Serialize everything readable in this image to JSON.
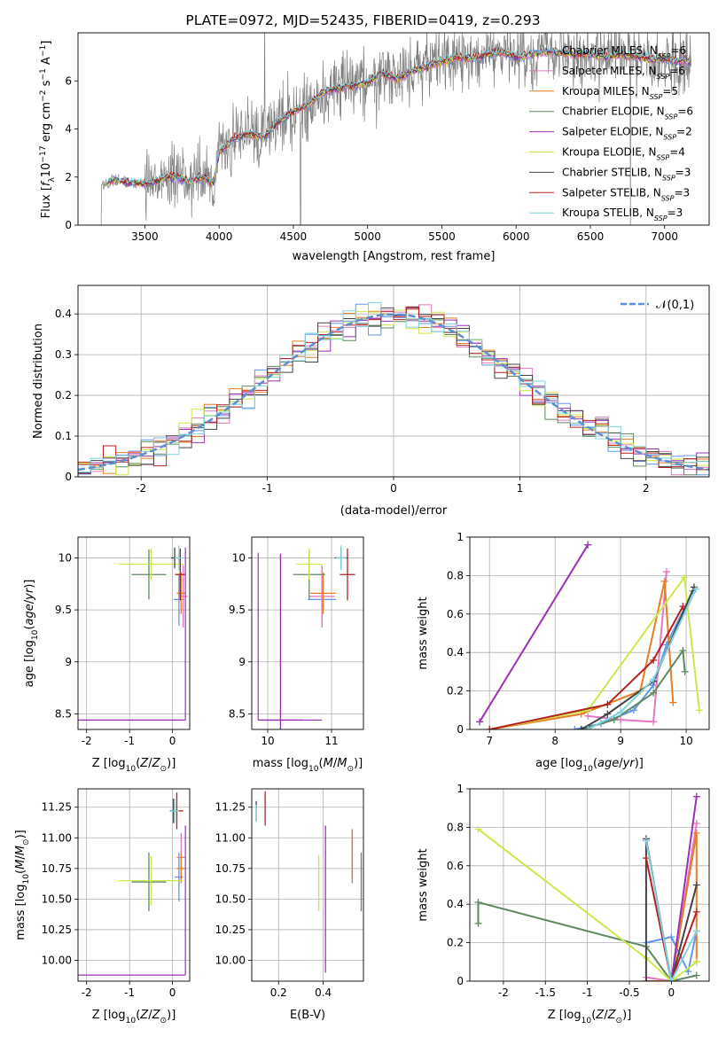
{
  "figure": {
    "title": "PLATE=0972, MJD=52435, FIBERID=0419, z=0.293"
  },
  "chart_data": [
    {
      "id": "spectrum",
      "type": "line",
      "title": "PLATE=0972, MJD=52435, FIBERID=0419, z=0.293",
      "xlabel": "wavelength [Angstrom, rest frame]",
      "ylabel": "Flux [f_λ 10^-17 erg cm^-2 s^-1 A^-1]",
      "xlim": [
        3050,
        7300
      ],
      "ylim": [
        0,
        8
      ],
      "xticks": [
        3500,
        4000,
        4500,
        5000,
        5500,
        6000,
        6500,
        7000
      ],
      "yticks": [
        0,
        2,
        4,
        6
      ],
      "grid": false,
      "legend_position": "top-right",
      "observed_color": "#808080",
      "series": [
        {
          "name": "Chabrier MILES, N_SSP=6",
          "color": "#6495ed"
        },
        {
          "name": "Salpeter MILES, N_SSP=6",
          "color": "#e377c2"
        },
        {
          "name": "Kroupa MILES, N_SSP=5",
          "color": "#e67e22"
        },
        {
          "name": "Chabrier ELODIE, N_SSP=6",
          "color": "#5f8a5f"
        },
        {
          "name": "Salpeter ELODIE, N_SSP=2",
          "color": "#9b30b5"
        },
        {
          "name": "Kroupa ELODIE, N_SSP=4",
          "color": "#cde84a"
        },
        {
          "name": "Chabrier STELIB, N_SSP=3",
          "color": "#444444"
        },
        {
          "name": "Salpeter STELIB, N_SSP=3",
          "color": "#b22222"
        },
        {
          "name": "Kroupa STELIB, N_SSP=3",
          "color": "#7ed3e0"
        }
      ],
      "continuum": [
        [
          3200,
          1.6
        ],
        [
          3300,
          1.9
        ],
        [
          3400,
          1.75
        ],
        [
          3500,
          1.7
        ],
        [
          3600,
          1.9
        ],
        [
          3700,
          2.0
        ],
        [
          3800,
          1.8
        ],
        [
          3900,
          2.0
        ],
        [
          3960,
          1.7
        ],
        [
          4000,
          3.0
        ],
        [
          4100,
          3.6
        ],
        [
          4200,
          3.8
        ],
        [
          4300,
          3.6
        ],
        [
          4400,
          4.3
        ],
        [
          4500,
          4.7
        ],
        [
          4600,
          5.0
        ],
        [
          4700,
          5.5
        ],
        [
          4800,
          5.7
        ],
        [
          4900,
          5.8
        ],
        [
          5000,
          5.9
        ],
        [
          5100,
          6.3
        ],
        [
          5200,
          6.1
        ],
        [
          5300,
          6.4
        ],
        [
          5400,
          6.6
        ],
        [
          5500,
          6.8
        ],
        [
          5600,
          7.0
        ],
        [
          5700,
          6.9
        ],
        [
          5800,
          7.1
        ],
        [
          5900,
          7.2
        ],
        [
          6000,
          7.0
        ],
        [
          6100,
          7.1
        ],
        [
          6200,
          7.2
        ],
        [
          6300,
          7.2
        ],
        [
          6400,
          7.1
        ],
        [
          6500,
          7.1
        ],
        [
          6600,
          7.0
        ],
        [
          6700,
          7.1
        ],
        [
          6800,
          7.0
        ],
        [
          6900,
          6.9
        ],
        [
          7000,
          6.9
        ],
        [
          7100,
          6.8
        ]
      ]
    },
    {
      "id": "residual-histogram",
      "type": "histogram",
      "xlabel": "(data-model)/error",
      "ylabel": "Normed distribution",
      "xlim": [
        -2.5,
        2.5
      ],
      "ylim": [
        0,
        0.47
      ],
      "xticks": [
        -2,
        -1,
        0,
        1,
        2
      ],
      "yticks": [
        0.0,
        0.1,
        0.2,
        0.3,
        0.4
      ],
      "grid": true,
      "bins": 50,
      "legend_position": "top-right",
      "reference": {
        "name": "𝒩(0,1)",
        "mean": 0,
        "sigma": 1,
        "color": "#5b8fd0"
      }
    },
    {
      "id": "age-vs-metallicity",
      "type": "errorbar",
      "xlabel": "Z [log10(Z/Z⊙)]",
      "ylabel": "age [log10(age/yr)]",
      "xlim": [
        -2.2,
        0.4
      ],
      "ylim": [
        8.35,
        10.2
      ],
      "xticks": [
        -2,
        -1,
        0
      ],
      "yticks": [
        8.5,
        9.0,
        9.5,
        10.0
      ],
      "grid": true,
      "points": [
        {
          "x": 0.15,
          "y": 9.6,
          "xerr": 0.12,
          "yerr": 0.25,
          "color": "#6495ed"
        },
        {
          "x": 0.25,
          "y": 9.63,
          "xerr": 0.1,
          "yerr": 0.3,
          "color": "#e377c2"
        },
        {
          "x": 0.2,
          "y": 9.66,
          "xerr": 0.1,
          "yerr": 0.2,
          "color": "#e67e22"
        },
        {
          "x": -0.55,
          "y": 9.84,
          "xerr": 0.4,
          "yerr": 0.24,
          "color": "#5f8a5f"
        },
        {
          "x": -0.95,
          "y": 8.44,
          "xerr": 1.25,
          "yerr": 0.0,
          "color": "#9b30b5"
        },
        {
          "x": -0.5,
          "y": 9.94,
          "xerr": 0.75,
          "yerr": 0.15,
          "color": "#cde84a"
        },
        {
          "x": 0.05,
          "y": 10.0,
          "xerr": 0.08,
          "yerr": 0.1,
          "color": "#444444"
        },
        {
          "x": 0.18,
          "y": 9.84,
          "xerr": 0.12,
          "yerr": 0.25,
          "color": "#b22222"
        },
        {
          "x": 0.15,
          "y": 10.0,
          "xerr": 0.1,
          "yerr": 0.12,
          "color": "#7ed3e0"
        }
      ]
    },
    {
      "id": "age-vs-mass",
      "type": "errorbar",
      "xlabel": "mass [log10(M/M⊙)]",
      "ylabel": "",
      "xlim": [
        9.75,
        11.5
      ],
      "ylim": [
        8.35,
        10.2
      ],
      "xticks": [
        10,
        11
      ],
      "yticks": [
        8.5,
        9.0,
        9.5,
        10.0
      ],
      "grid": true,
      "points": [
        {
          "x": 10.85,
          "y": 9.6,
          "xerr": 0.22,
          "yerr": 0.25,
          "color": "#6495ed"
        },
        {
          "x": 10.85,
          "y": 9.63,
          "xerr": 0.2,
          "yerr": 0.3,
          "color": "#e377c2"
        },
        {
          "x": 10.87,
          "y": 9.66,
          "xerr": 0.2,
          "yerr": 0.2,
          "color": "#e67e22"
        },
        {
          "x": 10.65,
          "y": 9.84,
          "xerr": 0.25,
          "yerr": 0.24,
          "color": "#5f8a5f"
        },
        {
          "x": 10.2,
          "y": 8.44,
          "xerr": 0.35,
          "yerr": 1.6,
          "color": "#9b30b5"
        },
        {
          "x": 10.65,
          "y": 9.94,
          "xerr": 0.2,
          "yerr": 0.15,
          "color": "#cde84a"
        },
        {
          "x": 11.15,
          "y": 10.0,
          "xerr": 0.1,
          "yerr": 0.1,
          "color": "#444444"
        },
        {
          "x": 11.25,
          "y": 9.84,
          "xerr": 0.12,
          "yerr": 0.25,
          "color": "#b22222"
        },
        {
          "x": 11.15,
          "y": 10.0,
          "xerr": 0.08,
          "yerr": 0.12,
          "color": "#7ed3e0"
        }
      ]
    },
    {
      "id": "mass-weight-vs-age",
      "type": "line",
      "xlabel": "age [log10(age/yr)]",
      "ylabel": "mass weight",
      "xlim": [
        6.7,
        10.35
      ],
      "ylim": [
        0,
        1.0
      ],
      "xticks": [
        7,
        8,
        9,
        10
      ],
      "yticks": [
        0.0,
        0.2,
        0.4,
        0.6,
        0.8,
        1.0
      ],
      "grid": true,
      "series": [
        {
          "color": "#6495ed",
          "points": [
            [
              8.3,
              0.0
            ],
            [
              8.7,
              0.03
            ],
            [
              9.2,
              0.1
            ],
            [
              9.5,
              0.23
            ],
            [
              9.7,
              0.44
            ],
            [
              10.1,
              0.72
            ]
          ]
        },
        {
          "color": "#e377c2",
          "points": [
            [
              8.5,
              0.07
            ],
            [
              9.0,
              0.05
            ],
            [
              9.5,
              0.04
            ],
            [
              9.7,
              0.82
            ]
          ]
        },
        {
          "color": "#e67e22",
          "points": [
            [
              7.0,
              0.0
            ],
            [
              8.4,
              0.08
            ],
            [
              9.3,
              0.2
            ],
            [
              9.67,
              0.77
            ],
            [
              9.8,
              0.14
            ]
          ]
        },
        {
          "color": "#5f8a5f",
          "points": [
            [
              8.4,
              0.0
            ],
            [
              8.9,
              0.05
            ],
            [
              9.5,
              0.19
            ],
            [
              9.95,
              0.41
            ],
            [
              9.98,
              0.3
            ]
          ]
        },
        {
          "color": "#9b30b5",
          "points": [
            [
              6.85,
              0.04
            ],
            [
              8.5,
              0.96
            ]
          ]
        },
        {
          "color": "#cde84a",
          "points": [
            [
              7.0,
              0.0
            ],
            [
              8.5,
              0.1
            ],
            [
              9.97,
              0.79
            ],
            [
              10.2,
              0.1
            ]
          ]
        },
        {
          "color": "#444444",
          "points": [
            [
              8.4,
              0.0
            ],
            [
              8.8,
              0.08
            ],
            [
              9.5,
              0.25
            ],
            [
              10.12,
              0.74
            ]
          ]
        },
        {
          "color": "#b22222",
          "points": [
            [
              7.0,
              0.0
            ],
            [
              8.8,
              0.13
            ],
            [
              9.5,
              0.36
            ],
            [
              9.95,
              0.64
            ]
          ]
        },
        {
          "color": "#7ed3e0",
          "points": [
            [
              8.5,
              0.0
            ],
            [
              9.0,
              0.09
            ],
            [
              9.5,
              0.26
            ],
            [
              10.15,
              0.73
            ]
          ]
        }
      ]
    },
    {
      "id": "mass-vs-metallicity",
      "type": "errorbar",
      "xlabel": "Z [log10(Z/Z⊙)]",
      "ylabel": "mass [log10(M/M⊙)]",
      "xlim": [
        -2.2,
        0.4
      ],
      "ylim": [
        9.83,
        11.4
      ],
      "xticks": [
        -2,
        -1,
        0
      ],
      "yticks": [
        10.0,
        10.25,
        10.5,
        10.75,
        11.0,
        11.25
      ],
      "grid": true,
      "points": [
        {
          "x": 0.15,
          "y": 10.68,
          "xerr": 0.1,
          "yerr": 0.2,
          "color": "#6495ed"
        },
        {
          "x": 0.2,
          "y": 10.84,
          "xerr": 0.1,
          "yerr": 0.2,
          "color": "#e377c2"
        },
        {
          "x": 0.2,
          "y": 10.75,
          "xerr": 0.1,
          "yerr": 0.12,
          "color": "#e67e22"
        },
        {
          "x": -0.55,
          "y": 10.64,
          "xerr": 0.4,
          "yerr": 0.24,
          "color": "#5f8a5f"
        },
        {
          "x": -0.95,
          "y": 9.88,
          "xerr": 1.25,
          "yerr": 0.0,
          "color": "#9b30b5"
        },
        {
          "x": -0.5,
          "y": 10.65,
          "xerr": 0.75,
          "yerr": 0.2,
          "color": "#cde84a"
        },
        {
          "x": 0.02,
          "y": 11.22,
          "xerr": 0.08,
          "yerr": 0.1,
          "color": "#444444"
        },
        {
          "x": 0.1,
          "y": 11.22,
          "xerr": 0.15,
          "yerr": 0.15,
          "color": "#b22222"
        },
        {
          "x": 0.05,
          "y": 11.22,
          "xerr": 0.1,
          "yerr": 0.1,
          "color": "#7ed3e0"
        }
      ]
    },
    {
      "id": "mass-vs-extinction",
      "type": "errorbar",
      "xlabel": "E(B-V)",
      "ylabel": "",
      "xlim": [
        0.08,
        0.58
      ],
      "ylim": [
        9.83,
        11.4
      ],
      "xticks": [
        0.2,
        0.4
      ],
      "yticks": [
        10.0,
        10.25,
        10.5,
        10.75,
        11.0,
        11.25
      ],
      "grid": true,
      "points": [
        {
          "x": 0.53,
          "y": 10.85,
          "xerr": 0.0,
          "yerr": 0.22,
          "color": "#6495ed"
        },
        {
          "x": 0.53,
          "y": 10.86,
          "xerr": 0.0,
          "yerr": 0.2,
          "color": "#e377c2"
        },
        {
          "x": 0.53,
          "y": 10.85,
          "xerr": 0.0,
          "yerr": 0.22,
          "color": "#e67e22"
        },
        {
          "x": 0.57,
          "y": 10.64,
          "xerr": 0.0,
          "yerr": 0.24,
          "color": "#5f8a5f"
        },
        {
          "x": 0.41,
          "y": 10.5,
          "xerr": 0.0,
          "yerr": 0.6,
          "color": "#9b30b5"
        },
        {
          "x": 0.38,
          "y": 10.63,
          "xerr": 0.0,
          "yerr": 0.23,
          "color": "#cde84a"
        },
        {
          "x": 0.1,
          "y": 11.22,
          "xerr": 0.0,
          "yerr": 0.08,
          "color": "#444444"
        },
        {
          "x": 0.14,
          "y": 11.24,
          "xerr": 0.0,
          "yerr": 0.14,
          "color": "#b22222"
        },
        {
          "x": 0.1,
          "y": 11.2,
          "xerr": 0.0,
          "yerr": 0.07,
          "color": "#7ed3e0"
        }
      ]
    },
    {
      "id": "mass-weight-vs-metallicity",
      "type": "line",
      "xlabel": "Z [log10(Z/Z⊙)]",
      "ylabel": "mass weight",
      "xlim": [
        -2.4,
        0.45
      ],
      "ylim": [
        0,
        1.0
      ],
      "xticks": [
        -2.0,
        -1.5,
        -1.0,
        -0.5,
        0.0
      ],
      "yticks": [
        0.0,
        0.2,
        0.4,
        0.6,
        0.8,
        1.0
      ],
      "grid": true,
      "series": [
        {
          "color": "#6495ed",
          "points": [
            [
              -0.3,
              0.2
            ],
            [
              0.0,
              0.23
            ],
            [
              0.2,
              0.05
            ],
            [
              0.3,
              0.26
            ]
          ]
        },
        {
          "color": "#e377c2",
          "points": [
            [
              -0.3,
              0.02
            ],
            [
              0.0,
              0.0
            ],
            [
              0.3,
              0.82
            ]
          ]
        },
        {
          "color": "#e67e22",
          "points": [
            [
              -0.3,
              0.0
            ],
            [
              0.0,
              0.0
            ],
            [
              0.3,
              0.77
            ],
            [
              0.3,
              0.1
            ]
          ]
        },
        {
          "color": "#5f8a5f",
          "points": [
            [
              -2.3,
              0.3
            ],
            [
              -2.3,
              0.41
            ],
            [
              -0.3,
              0.18
            ],
            [
              0.0,
              0.0
            ],
            [
              0.3,
              0.03
            ]
          ]
        },
        {
          "color": "#9b30b5",
          "points": [
            [
              0.0,
              0.0
            ],
            [
              0.3,
              0.96
            ]
          ]
        },
        {
          "color": "#cde84a",
          "points": [
            [
              -2.3,
              0.79
            ],
            [
              -0.3,
              0.12
            ],
            [
              0.0,
              0.0
            ],
            [
              0.3,
              0.1
            ]
          ]
        },
        {
          "color": "#444444",
          "points": [
            [
              -0.3,
              0.0
            ],
            [
              -0.3,
              0.74
            ],
            [
              0.0,
              0.0
            ],
            [
              0.3,
              0.5
            ]
          ]
        },
        {
          "color": "#b22222",
          "points": [
            [
              -0.3,
              0.64
            ],
            [
              0.0,
              0.0
            ],
            [
              0.3,
              0.36
            ]
          ]
        },
        {
          "color": "#7ed3e0",
          "points": [
            [
              -0.3,
              0.73
            ],
            [
              0.0,
              0.0
            ],
            [
              0.3,
              0.26
            ]
          ]
        }
      ]
    }
  ]
}
